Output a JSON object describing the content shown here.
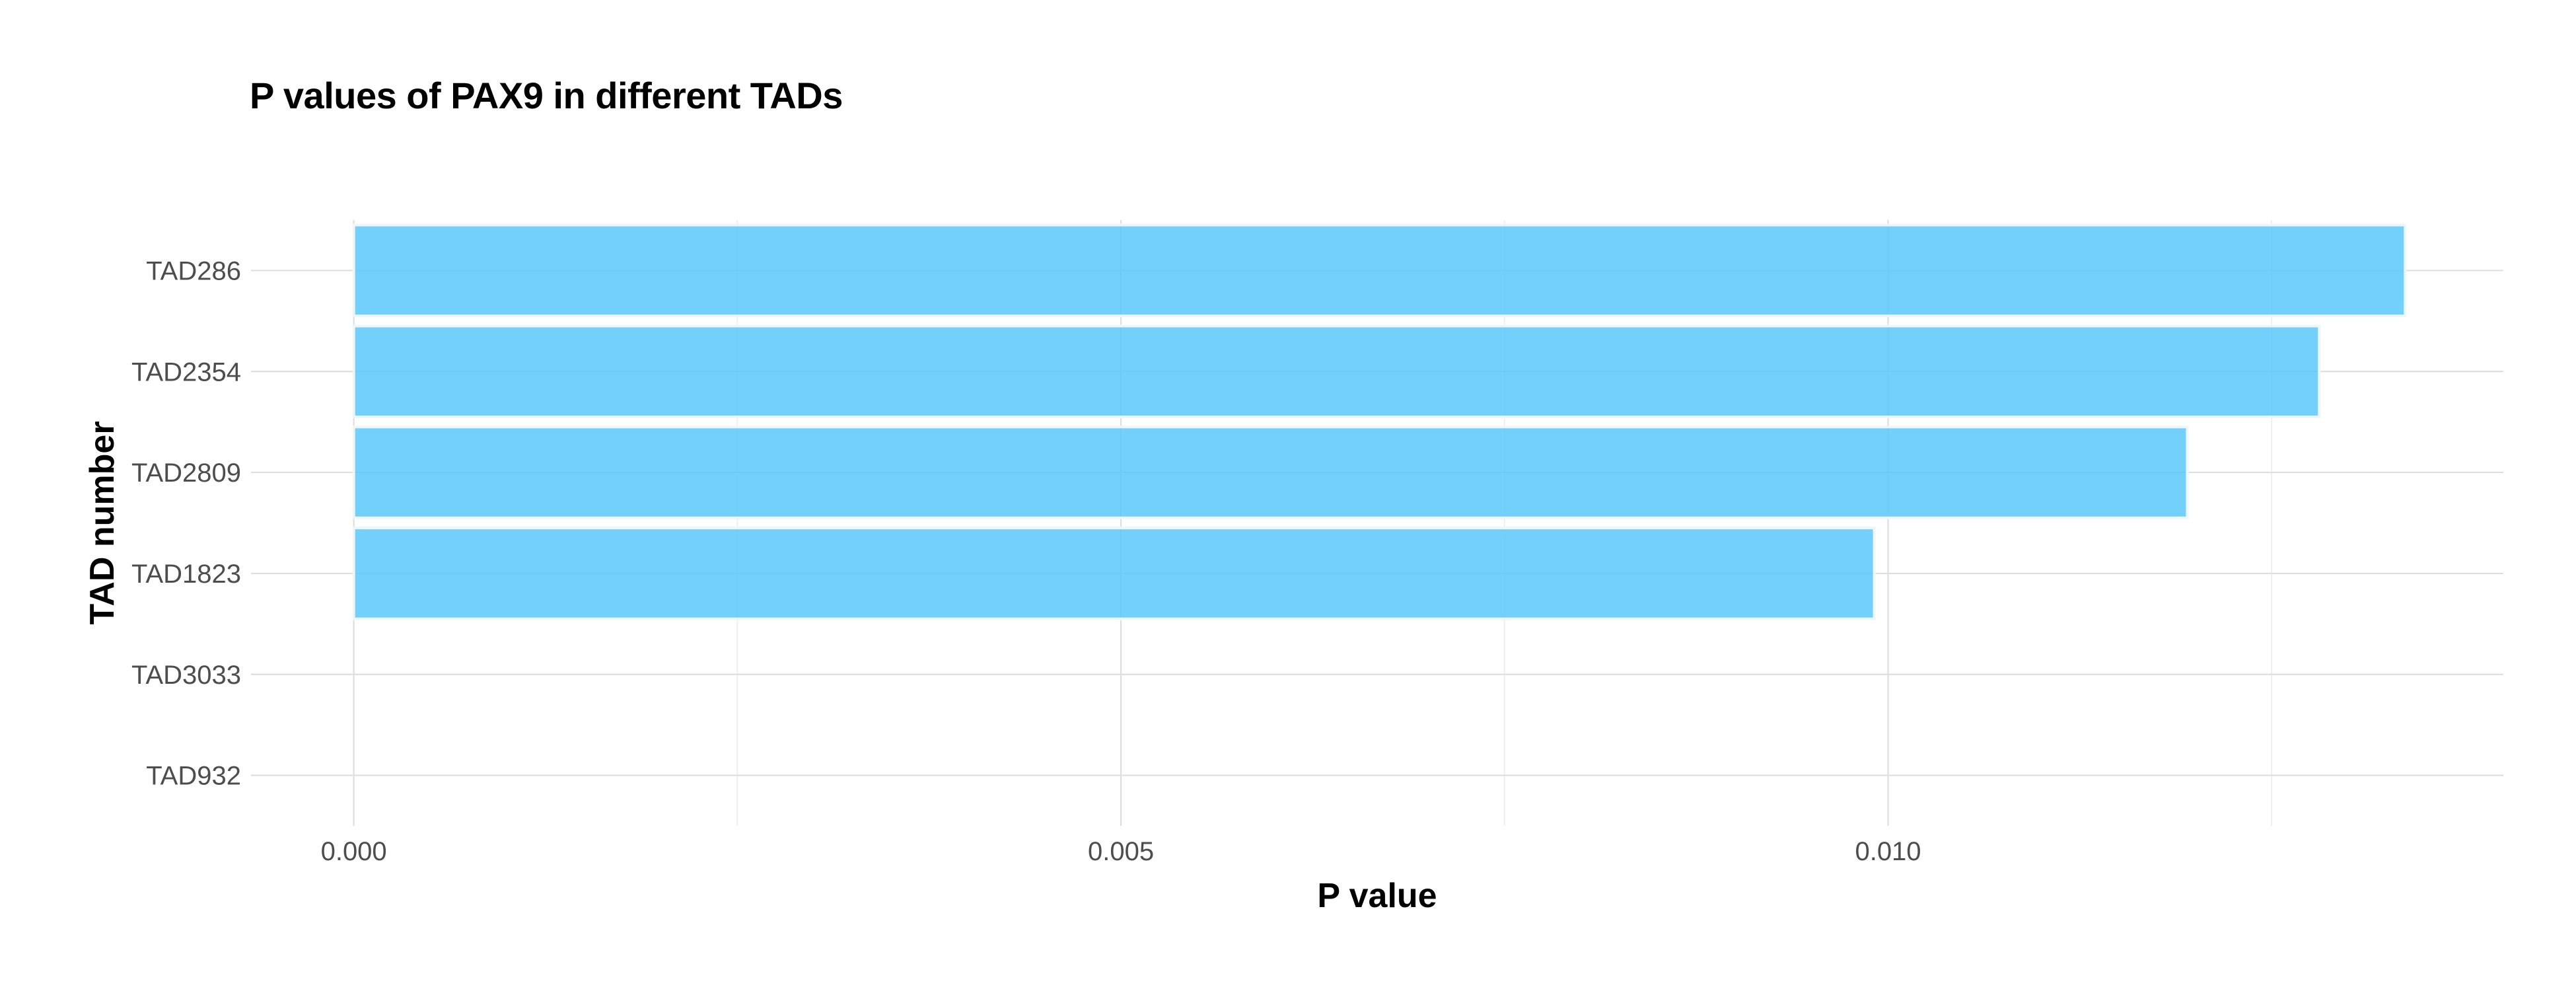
{
  "chart_data": {
    "type": "bar",
    "orientation": "horizontal",
    "title": "P values of PAX9 in different TADs",
    "xlabel": "P value",
    "ylabel": "TAD number",
    "categories": [
      "TAD286",
      "TAD2354",
      "TAD2809",
      "TAD1823",
      "TAD3033",
      "TAD932"
    ],
    "values": [
      0.01337,
      0.01281,
      0.01195,
      0.00991,
      0,
      0
    ],
    "xlim": [
      -0.00067,
      0.01401
    ],
    "x_ticks": [
      0.0,
      0.005,
      0.01
    ],
    "x_tick_labels": [
      "0.000",
      "0.005",
      "0.010"
    ],
    "bar_color": "#5bc8fa",
    "bar_outline_color": "#eef6fb",
    "grid": true,
    "legend": "none"
  }
}
